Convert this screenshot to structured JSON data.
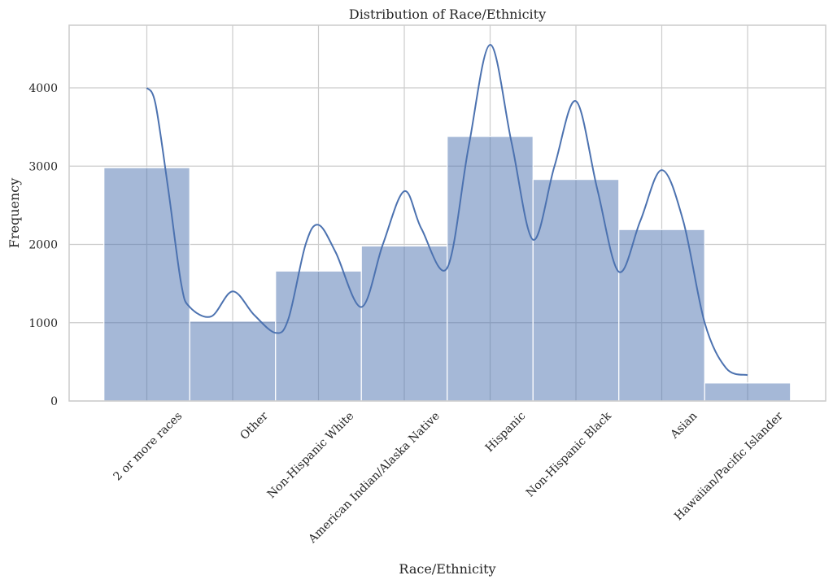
{
  "chart_data": {
    "type": "bar",
    "title": "Distribution of Race/Ethnicity",
    "xlabel": "Race/Ethnicity",
    "ylabel": "Frequency",
    "categories": [
      "2 or more races",
      "Other",
      "Non-Hispanic White",
      "American Indian/Alaska Native",
      "Hispanic",
      "Non-Hispanic Black",
      "Asian",
      "Hawaiian/Pacific Islander"
    ],
    "values": [
      2980,
      1020,
      1660,
      1980,
      3380,
      2830,
      2190,
      230
    ],
    "ylim": [
      0,
      4800
    ],
    "yticks": [
      0,
      1000,
      2000,
      3000,
      4000
    ],
    "grid": true,
    "kde": {
      "x": [
        0,
        0.1,
        0.25,
        0.4,
        0.5,
        0.75,
        1.0,
        1.25,
        1.5,
        1.65,
        1.85,
        2.0,
        2.2,
        2.5,
        2.75,
        3.0,
        3.2,
        3.5,
        3.75,
        4.0,
        4.25,
        4.5,
        4.75,
        5.0,
        5.25,
        5.5,
        5.75,
        6.0,
        6.25,
        6.5,
        6.75,
        7.0
      ],
      "y": [
        4000,
        3800,
        2700,
        1500,
        1200,
        1080,
        1400,
        1100,
        870,
        1050,
        2000,
        2250,
        1900,
        1200,
        2000,
        2680,
        2200,
        1700,
        3250,
        4550,
        3300,
        2060,
        3000,
        3830,
        2700,
        1650,
        2300,
        2950,
        2300,
        1000,
        420,
        330
      ]
    }
  }
}
